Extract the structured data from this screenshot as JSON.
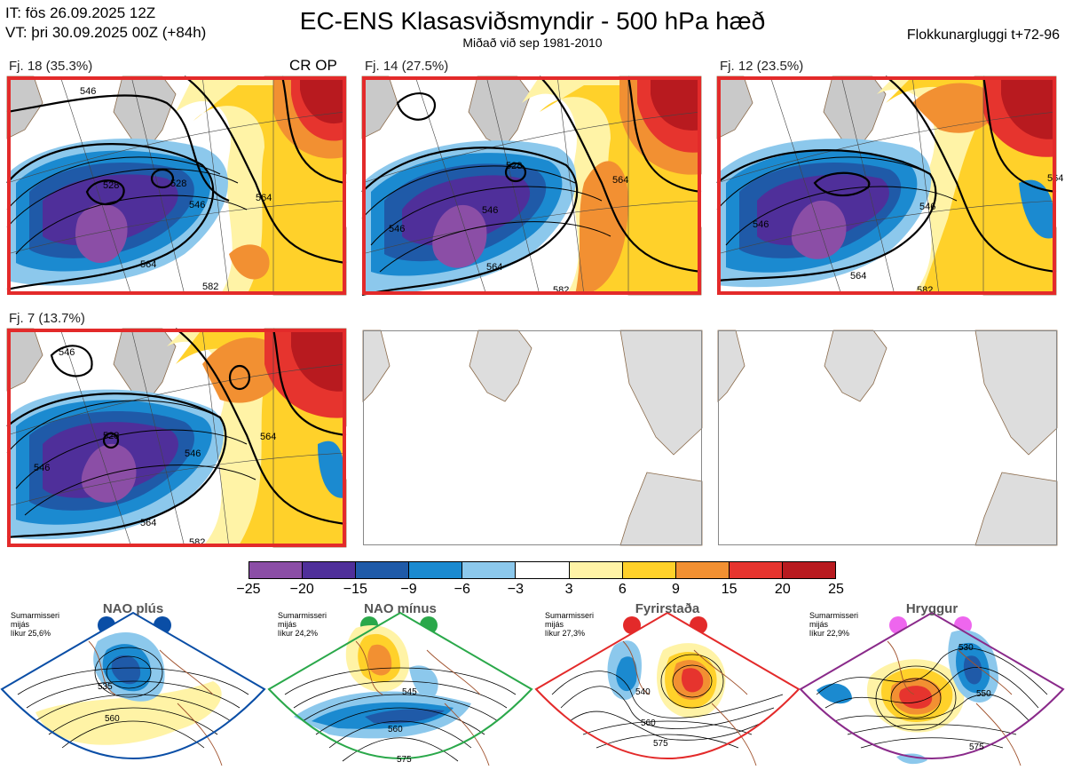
{
  "header": {
    "it_line": "IT: fös 26.09.2025 12Z",
    "vt_line": "VT: þri 30.09.2025 00Z  (+84h)",
    "title": "EC-ENS Klasasviðsmyndir - 500 hPa hæð",
    "subtitle": "Miðað við sep 1981-2010",
    "window": "Flokkunargluggi t+72-96"
  },
  "clusters": [
    {
      "label": "Fj. 18 (35.3%)",
      "tag": "CR OP",
      "contours": [
        "528",
        "528",
        "546",
        "546",
        "564",
        "582",
        "564"
      ]
    },
    {
      "label": "Fj. 14 (27.5%)",
      "tag": "",
      "contours": [
        "528",
        "546",
        "564",
        "564",
        "582",
        "546"
      ]
    },
    {
      "label": "Fj. 12 (23.5%)",
      "tag": "",
      "contours": [
        "546",
        "546",
        "564",
        "582",
        "564"
      ]
    },
    {
      "label": "Fj. 7 (13.7%)",
      "tag": "",
      "contours": [
        "546",
        "528",
        "546",
        "546",
        "564",
        "564",
        "582"
      ]
    }
  ],
  "colorbar": {
    "ticks": [
      "−25",
      "−20",
      "−15",
      "−9",
      "−6",
      "−3",
      "3",
      "6",
      "9",
      "15",
      "20",
      "25"
    ],
    "colors": [
      "#8b4ea6",
      "#4f2f9a",
      "#1f5aa8",
      "#1b8ad0",
      "#8cc8ec",
      "#ffffff",
      "#fff3a6",
      "#ffd12a",
      "#f29032",
      "#e6342e",
      "#b81a1f"
    ]
  },
  "regimes": [
    {
      "name": "NAO plús",
      "season": "Sumarmisseri",
      "level": "mijás",
      "prob": "líkur 25,6%",
      "color": "#0a4ea6",
      "dot": "#0a4ea6",
      "contours": [
        "535",
        "560"
      ]
    },
    {
      "name": "NAO mínus",
      "season": "Sumarmisseri",
      "level": "mijás",
      "prob": "líkur 24,2%",
      "color": "#2aa84a",
      "dot": "#2aa84a",
      "contours": [
        "545",
        "560",
        "575"
      ]
    },
    {
      "name": "Fyrirstaða",
      "season": "Sumarmisseri",
      "level": "mijás",
      "prob": "líkur 27,3%",
      "color": "#e32a2a",
      "dot": "#e32a2a",
      "contours": [
        "540",
        "560",
        "575"
      ]
    },
    {
      "name": "Hryggur",
      "season": "Sumarmisseri",
      "level": "mijás",
      "prob": "líkur 22,9%",
      "color": "#8a2a8a",
      "dot": "#ee66ee",
      "contours": [
        "530",
        "550",
        "575"
      ]
    }
  ]
}
